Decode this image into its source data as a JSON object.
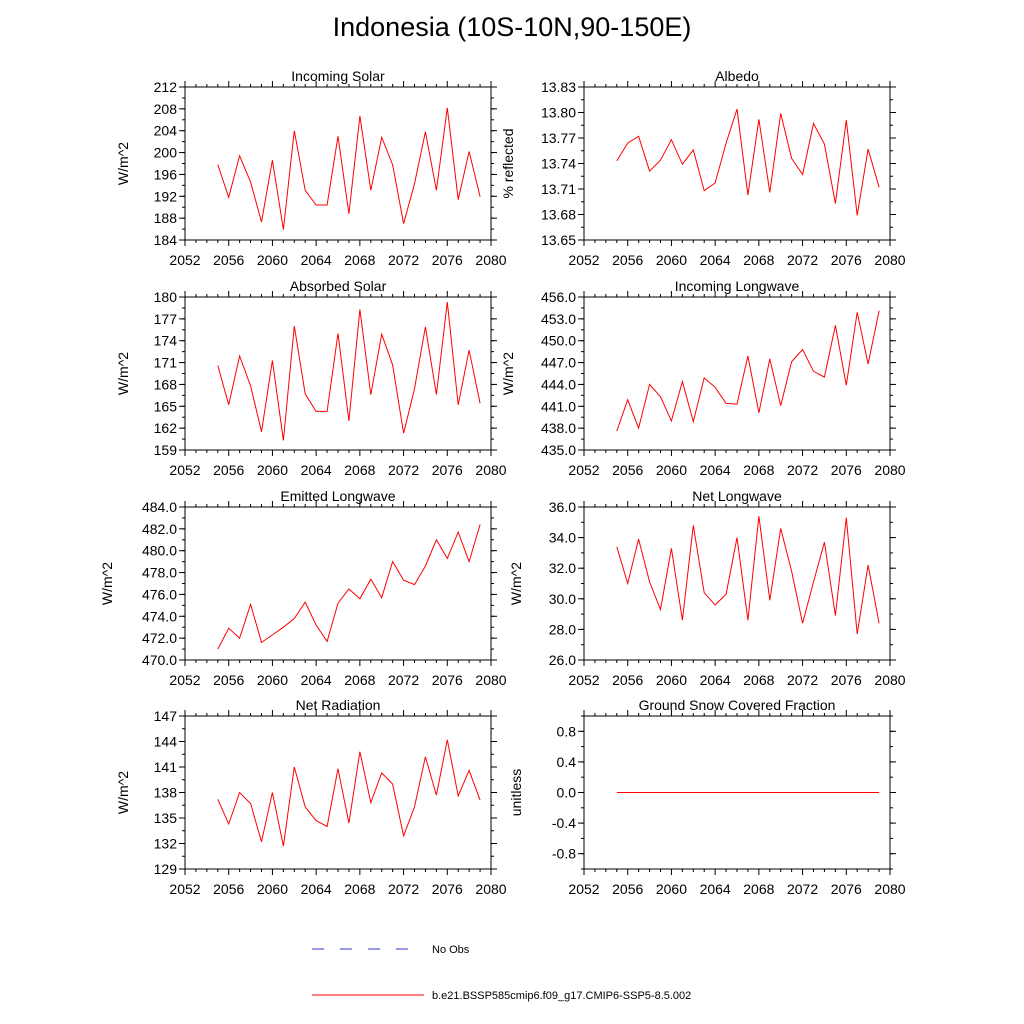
{
  "title": "Indonesia (10S-10N,90-150E)",
  "colors": {
    "series": "#ff0000",
    "obs": "#3333cc",
    "axis": "#000000",
    "background": "#ffffff"
  },
  "legend": [
    {
      "label": "No Obs",
      "color": "#3333cc",
      "style": "dashed"
    },
    {
      "label": "b.e21.BSSP585cmip6.f09_g17.CMIP6-SSP5-8.5.002",
      "color": "#ff0000",
      "style": "solid"
    }
  ],
  "chart_data": [
    {
      "type": "line",
      "title": "Incoming Solar",
      "xlabel": "",
      "ylabel": "W/m^2",
      "xlim": [
        2052,
        2080
      ],
      "ylim": [
        184,
        212
      ],
      "xticks": [
        2052,
        2056,
        2060,
        2064,
        2068,
        2072,
        2076,
        2080
      ],
      "xtick_labels": [
        "2052",
        "2056",
        "2060",
        "2064",
        "2068",
        "2072",
        "2076",
        "2080"
      ],
      "yticks": [
        184,
        188,
        192,
        196,
        200,
        204,
        208,
        212
      ],
      "ytick_labels": [
        "184",
        "188",
        "192",
        "196",
        "200",
        "204",
        "208",
        "212"
      ],
      "series": [
        {
          "x": [
            2055,
            2056,
            2057,
            2058,
            2059,
            2060,
            2061,
            2062,
            2063,
            2064,
            2065,
            2066,
            2067,
            2068,
            2069,
            2070,
            2071,
            2072,
            2073,
            2074,
            2075,
            2076,
            2077,
            2078,
            2079
          ],
          "values": [
            197.8,
            191.8,
            199.4,
            194.6,
            187.3,
            198.6,
            185.9,
            204.0,
            193.1,
            190.4,
            190.4,
            203.0,
            188.8,
            206.7,
            193.1,
            202.8,
            197.8,
            187.0,
            194.3,
            203.8,
            193.1,
            208.2,
            191.4,
            200.2,
            191.9
          ]
        }
      ]
    },
    {
      "type": "line",
      "title": "Albedo",
      "xlabel": "",
      "ylabel": "% reflected",
      "xlim": [
        2052,
        2080
      ],
      "ylim": [
        13.65,
        13.83
      ],
      "xticks": [
        2052,
        2056,
        2060,
        2064,
        2068,
        2072,
        2076,
        2080
      ],
      "xtick_labels": [
        "2052",
        "2056",
        "2060",
        "2064",
        "2068",
        "2072",
        "2076",
        "2080"
      ],
      "yticks": [
        13.65,
        13.68,
        13.71,
        13.74,
        13.77,
        13.8,
        13.83
      ],
      "ytick_labels": [
        "13.65",
        "13.68",
        "13.71",
        "13.74",
        "13.77",
        "13.80",
        "13.83"
      ],
      "series": [
        {
          "x": [
            2055,
            2056,
            2057,
            2058,
            2059,
            2060,
            2061,
            2062,
            2063,
            2064,
            2065,
            2066,
            2067,
            2068,
            2069,
            2070,
            2071,
            2072,
            2073,
            2074,
            2075,
            2076,
            2077,
            2078,
            2079
          ],
          "values": [
            13.743,
            13.764,
            13.772,
            13.731,
            13.744,
            13.768,
            13.739,
            13.756,
            13.708,
            13.717,
            13.764,
            13.804,
            13.703,
            13.792,
            13.706,
            13.799,
            13.746,
            13.727,
            13.787,
            13.763,
            13.693,
            13.791,
            13.679,
            13.757,
            13.712
          ]
        }
      ]
    },
    {
      "type": "line",
      "title": "Absorbed Solar",
      "xlabel": "",
      "ylabel": "W/m^2",
      "xlim": [
        2052,
        2080
      ],
      "ylim": [
        159,
        180
      ],
      "xticks": [
        2052,
        2056,
        2060,
        2064,
        2068,
        2072,
        2076,
        2080
      ],
      "xtick_labels": [
        "2052",
        "2056",
        "2060",
        "2064",
        "2068",
        "2072",
        "2076",
        "2080"
      ],
      "yticks": [
        159,
        162,
        165,
        168,
        171,
        174,
        177,
        180
      ],
      "ytick_labels": [
        "159",
        "162",
        "165",
        "168",
        "171",
        "174",
        "177",
        "180"
      ],
      "series": [
        {
          "x": [
            2055,
            2056,
            2057,
            2058,
            2059,
            2060,
            2061,
            2062,
            2063,
            2064,
            2065,
            2066,
            2067,
            2068,
            2069,
            2070,
            2071,
            2072,
            2073,
            2074,
            2075,
            2076,
            2077,
            2078,
            2079
          ],
          "values": [
            170.6,
            165.2,
            171.9,
            167.8,
            161.5,
            171.3,
            160.3,
            176.0,
            166.7,
            164.3,
            164.3,
            175.0,
            163.0,
            178.3,
            166.6,
            174.9,
            170.7,
            161.3,
            167.4,
            175.9,
            166.6,
            179.3,
            165.2,
            172.7,
            165.4
          ]
        }
      ]
    },
    {
      "type": "line",
      "title": "Incoming Longwave",
      "xlabel": "",
      "ylabel": "W/m^2",
      "xlim": [
        2052,
        2080
      ],
      "ylim": [
        435,
        456
      ],
      "xticks": [
        2052,
        2056,
        2060,
        2064,
        2068,
        2072,
        2076,
        2080
      ],
      "xtick_labels": [
        "2052",
        "2056",
        "2060",
        "2064",
        "2068",
        "2072",
        "2076",
        "2080"
      ],
      "yticks": [
        435,
        438,
        441,
        444,
        447,
        450,
        453,
        456
      ],
      "ytick_labels": [
        "435.0",
        "438.0",
        "441.0",
        "444.0",
        "447.0",
        "450.0",
        "453.0",
        "456.0"
      ],
      "series": [
        {
          "x": [
            2055,
            2056,
            2057,
            2058,
            2059,
            2060,
            2061,
            2062,
            2063,
            2064,
            2065,
            2066,
            2067,
            2068,
            2069,
            2070,
            2071,
            2072,
            2073,
            2074,
            2075,
            2076,
            2077,
            2078,
            2079
          ],
          "values": [
            437.6,
            441.9,
            438.0,
            444.0,
            442.3,
            439.0,
            444.4,
            438.9,
            444.9,
            443.6,
            441.4,
            441.3,
            447.9,
            440.1,
            447.5,
            441.1,
            447.1,
            448.8,
            445.8,
            445.0,
            452.1,
            443.9,
            453.9,
            446.8,
            454.1
          ]
        }
      ]
    },
    {
      "type": "line",
      "title": "Emitted Longwave",
      "xlabel": "",
      "ylabel": "W/m^2",
      "xlim": [
        2052,
        2080
      ],
      "ylim": [
        470,
        484
      ],
      "xticks": [
        2052,
        2056,
        2060,
        2064,
        2068,
        2072,
        2076,
        2080
      ],
      "xtick_labels": [
        "2052",
        "2056",
        "2060",
        "2064",
        "2068",
        "2072",
        "2076",
        "2080"
      ],
      "yticks": [
        470,
        472,
        474,
        476,
        478,
        480,
        482,
        484
      ],
      "ytick_labels": [
        "470.0",
        "472.0",
        "474.0",
        "476.0",
        "478.0",
        "480.0",
        "482.0",
        "484.0"
      ],
      "series": [
        {
          "x": [
            2055,
            2056,
            2057,
            2058,
            2059,
            2060,
            2061,
            2062,
            2063,
            2064,
            2065,
            2066,
            2067,
            2068,
            2069,
            2070,
            2071,
            2072,
            2073,
            2074,
            2075,
            2076,
            2077,
            2078,
            2079
          ],
          "values": [
            471.0,
            472.9,
            472.0,
            475.1,
            471.6,
            472.3,
            473.0,
            473.8,
            475.3,
            473.2,
            471.7,
            475.2,
            476.5,
            475.6,
            477.4,
            475.7,
            479.0,
            477.3,
            476.9,
            478.6,
            481.0,
            479.3,
            481.7,
            479.0,
            482.4
          ]
        }
      ]
    },
    {
      "type": "line",
      "title": "Net Longwave",
      "xlabel": "",
      "ylabel": "W/m^2",
      "xlim": [
        2052,
        2080
      ],
      "ylim": [
        26,
        36
      ],
      "xticks": [
        2052,
        2056,
        2060,
        2064,
        2068,
        2072,
        2076,
        2080
      ],
      "xtick_labels": [
        "2052",
        "2056",
        "2060",
        "2064",
        "2068",
        "2072",
        "2076",
        "2080"
      ],
      "yticks": [
        26,
        28,
        30,
        32,
        34,
        36
      ],
      "ytick_labels": [
        "26.0",
        "28.0",
        "30.0",
        "32.0",
        "34.0",
        "36.0"
      ],
      "series": [
        {
          "x": [
            2055,
            2056,
            2057,
            2058,
            2059,
            2060,
            2061,
            2062,
            2063,
            2064,
            2065,
            2066,
            2067,
            2068,
            2069,
            2070,
            2071,
            2072,
            2073,
            2074,
            2075,
            2076,
            2077,
            2078,
            2079
          ],
          "values": [
            33.4,
            31.0,
            33.9,
            31.1,
            29.3,
            33.3,
            28.6,
            34.8,
            30.4,
            29.6,
            30.3,
            34.0,
            28.6,
            35.4,
            29.9,
            34.6,
            31.8,
            28.4,
            31.1,
            33.7,
            28.9,
            35.3,
            27.7,
            32.2,
            28.4
          ]
        }
      ]
    },
    {
      "type": "line",
      "title": "Net Radiation",
      "xlabel": "",
      "ylabel": "W/m^2",
      "xlim": [
        2052,
        2080
      ],
      "ylim": [
        129,
        147
      ],
      "xticks": [
        2052,
        2056,
        2060,
        2064,
        2068,
        2072,
        2076,
        2080
      ],
      "xtick_labels": [
        "2052",
        "2056",
        "2060",
        "2064",
        "2068",
        "2072",
        "2076",
        "2080"
      ],
      "yticks": [
        129,
        132,
        135,
        138,
        141,
        144,
        147
      ],
      "ytick_labels": [
        "129",
        "132",
        "135",
        "138",
        "141",
        "144",
        "147"
      ],
      "series": [
        {
          "x": [
            2055,
            2056,
            2057,
            2058,
            2059,
            2060,
            2061,
            2062,
            2063,
            2064,
            2065,
            2066,
            2067,
            2068,
            2069,
            2070,
            2071,
            2072,
            2073,
            2074,
            2075,
            2076,
            2077,
            2078,
            2079
          ],
          "values": [
            137.2,
            134.3,
            138.0,
            136.7,
            132.2,
            138.0,
            131.7,
            141.0,
            136.3,
            134.7,
            134.0,
            140.8,
            134.4,
            142.8,
            136.8,
            140.3,
            139.0,
            132.9,
            136.3,
            142.2,
            137.7,
            144.2,
            137.6,
            140.6,
            137.1
          ]
        }
      ]
    },
    {
      "type": "line",
      "title": "Ground Snow Covered Fraction",
      "xlabel": "",
      "ylabel": "unitless",
      "xlim": [
        2052,
        2080
      ],
      "ylim": [
        -1.0,
        1.0
      ],
      "xticks": [
        2052,
        2056,
        2060,
        2064,
        2068,
        2072,
        2076,
        2080
      ],
      "xtick_labels": [
        "2052",
        "2056",
        "2060",
        "2064",
        "2068",
        "2072",
        "2076",
        "2080"
      ],
      "yticks": [
        -0.8,
        -0.4,
        0.0,
        0.4,
        0.8
      ],
      "ytick_labels": [
        "-0.8",
        "-0.4",
        "0.0",
        "0.4",
        "0.8"
      ],
      "series": [
        {
          "x": [
            2055,
            2056,
            2057,
            2058,
            2059,
            2060,
            2061,
            2062,
            2063,
            2064,
            2065,
            2066,
            2067,
            2068,
            2069,
            2070,
            2071,
            2072,
            2073,
            2074,
            2075,
            2076,
            2077,
            2078,
            2079
          ],
          "values": [
            0,
            0,
            0,
            0,
            0,
            0,
            0,
            0,
            0,
            0,
            0,
            0,
            0,
            0,
            0,
            0,
            0,
            0,
            0,
            0,
            0,
            0,
            0,
            0,
            0
          ]
        }
      ]
    }
  ]
}
